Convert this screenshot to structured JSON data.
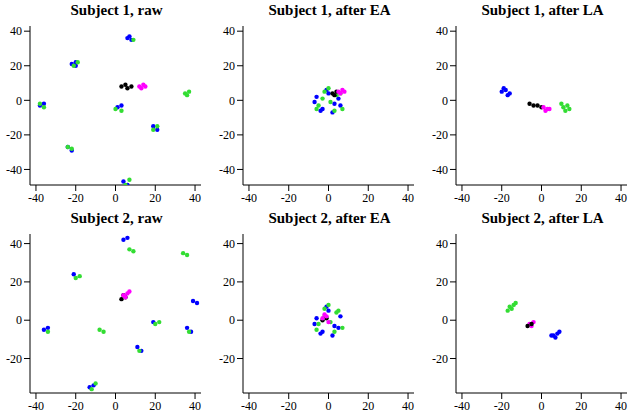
{
  "chart_data": [
    {
      "type": "scatter",
      "title": "Subject 1, raw",
      "xlim": [
        -43,
        43
      ],
      "ylim": [
        -49,
        43
      ],
      "xticks": [
        -40,
        -20,
        0,
        20,
        40
      ],
      "yticks": [
        -40,
        -20,
        0,
        20,
        40
      ],
      "series": [
        {
          "color": "#0000ff",
          "x": [
            -22,
            -20,
            6,
            8,
            7,
            1,
            3,
            19,
            21,
            -24,
            -22,
            4,
            6,
            -38,
            -36,
            -20
          ],
          "y": [
            21,
            22,
            36,
            35,
            37,
            -4,
            -3,
            -15,
            -17,
            -27,
            -29,
            -47,
            -49,
            -3,
            -2,
            20
          ]
        },
        {
          "color": "#33dd33",
          "x": [
            -21,
            -19,
            35,
            37,
            36,
            -36,
            -38,
            0,
            3,
            19,
            21,
            -22,
            -24,
            5,
            7,
            9
          ],
          "y": [
            20,
            22,
            4,
            5,
            3,
            -4,
            -2,
            -5,
            -6,
            -17,
            -15,
            -28,
            -27,
            -49,
            -46,
            35
          ]
        },
        {
          "color": "#000000",
          "x": [
            3,
            5,
            6,
            8
          ],
          "y": [
            8,
            9,
            7,
            8
          ]
        },
        {
          "color": "#ff00ff",
          "x": [
            12,
            14,
            15,
            13
          ],
          "y": [
            8,
            9,
            8,
            7
          ]
        }
      ]
    },
    {
      "type": "scatter",
      "title": "Subject 1, after EA",
      "xlim": [
        -43,
        43
      ],
      "ylim": [
        -49,
        43
      ],
      "xticks": [
        -40,
        -20,
        0,
        20,
        40
      ],
      "yticks": [
        -40,
        -20,
        0,
        20,
        40
      ],
      "series": [
        {
          "color": "#0000ff",
          "x": [
            -6,
            -3,
            0,
            3,
            5,
            -4,
            2,
            -1,
            6,
            -7
          ],
          "y": [
            2,
            -5,
            4,
            -2,
            1,
            -6,
            -7,
            6,
            -3,
            -1
          ]
        },
        {
          "color": "#33dd33",
          "x": [
            -5,
            -2,
            1,
            4,
            7,
            -3,
            3,
            0,
            6,
            -6
          ],
          "y": [
            -3,
            5,
            -1,
            3,
            -5,
            1,
            -6,
            7,
            4,
            -5
          ]
        },
        {
          "color": "#000000",
          "x": [
            2,
            4,
            3
          ],
          "y": [
            4,
            5,
            3
          ]
        },
        {
          "color": "#ff00ff",
          "x": [
            5,
            7,
            6,
            8
          ],
          "y": [
            5,
            6,
            4,
            5
          ]
        }
      ]
    },
    {
      "type": "scatter",
      "title": "Subject 1, after LA",
      "xlim": [
        -43,
        43
      ],
      "ylim": [
        -49,
        43
      ],
      "xticks": [
        -40,
        -20,
        0,
        20,
        40
      ],
      "yticks": [
        -40,
        -20,
        0,
        20,
        40
      ],
      "series": [
        {
          "color": "#0000ff",
          "x": [
            -20,
            -18,
            -16,
            -17,
            -19
          ],
          "y": [
            5,
            6,
            4,
            3,
            7
          ]
        },
        {
          "color": "#000000",
          "x": [
            -6,
            -4,
            -2,
            0
          ],
          "y": [
            -2,
            -3,
            -3,
            -4
          ]
        },
        {
          "color": "#ff00ff",
          "x": [
            1,
            3,
            4,
            2
          ],
          "y": [
            -4,
            -5,
            -5,
            -6
          ]
        },
        {
          "color": "#33dd33",
          "x": [
            11,
            13,
            12,
            14,
            10
          ],
          "y": [
            -4,
            -3,
            -6,
            -5,
            -2
          ]
        }
      ]
    },
    {
      "type": "scatter",
      "title": "Subject 2, raw",
      "xlim": [
        -43,
        43
      ],
      "ylim": [
        -38,
        45
      ],
      "xticks": [
        -40,
        -20,
        0,
        20,
        40
      ],
      "yticks": [
        -20,
        0,
        20,
        40
      ],
      "series": [
        {
          "color": "#0000ff",
          "x": [
            4,
            6,
            39,
            41,
            -36,
            -34,
            36,
            38,
            11,
            13,
            -13,
            -11,
            -21,
            19
          ],
          "y": [
            42,
            43,
            10,
            9,
            -5,
            -4,
            -4,
            -6,
            -14,
            -16,
            -35,
            -34,
            24,
            -1
          ]
        },
        {
          "color": "#33dd33",
          "x": [
            7,
            9,
            -20,
            -18,
            34,
            36,
            -34,
            -8,
            -6,
            20,
            22,
            37,
            12,
            -12,
            -10
          ],
          "y": [
            37,
            36,
            22,
            23,
            35,
            34,
            -6,
            -5,
            -6,
            -2,
            -1,
            -6,
            -16,
            -36,
            -33
          ]
        },
        {
          "color": "#000000",
          "x": [
            3,
            5,
            4
          ],
          "y": [
            11,
            12,
            13
          ]
        },
        {
          "color": "#ff00ff",
          "x": [
            4,
            6,
            7,
            5
          ],
          "y": [
            13,
            14,
            15,
            12
          ]
        }
      ]
    },
    {
      "type": "scatter",
      "title": "Subject 2, after EA",
      "xlim": [
        -43,
        43
      ],
      "ylim": [
        -38,
        45
      ],
      "xticks": [
        -40,
        -20,
        0,
        20,
        40
      ],
      "yticks": [
        -20,
        0,
        20,
        40
      ],
      "series": [
        {
          "color": "#0000ff",
          "x": [
            -6,
            -3,
            0,
            3,
            6,
            -4,
            2,
            -1,
            5,
            -7
          ],
          "y": [
            1,
            -6,
            5,
            -3,
            2,
            -7,
            -8,
            7,
            -4,
            -2
          ]
        },
        {
          "color": "#33dd33",
          "x": [
            -5,
            -2,
            1,
            4,
            7,
            -2,
            3,
            0,
            5,
            -6
          ],
          "y": [
            -2,
            6,
            -1,
            4,
            -4,
            2,
            -6,
            8,
            5,
            -5
          ]
        },
        {
          "color": "#000000",
          "x": [
            -3,
            -1
          ],
          "y": [
            0,
            1
          ]
        },
        {
          "color": "#ff00ff",
          "x": [
            -3,
            -1,
            0,
            -2
          ],
          "y": [
            1,
            2,
            -1,
            3
          ]
        }
      ]
    },
    {
      "type": "scatter",
      "title": "Subject 2, after LA",
      "xlim": [
        -43,
        43
      ],
      "ylim": [
        -38,
        45
      ],
      "xticks": [
        -40,
        -20,
        0,
        20,
        40
      ],
      "yticks": [
        -20,
        0,
        20,
        40
      ],
      "series": [
        {
          "color": "#33dd33",
          "x": [
            -16,
            -14,
            -15,
            -13,
            -17
          ],
          "y": [
            7,
            8,
            6,
            9,
            5
          ]
        },
        {
          "color": "#ff00ff",
          "x": [
            -6,
            -4,
            -5
          ],
          "y": [
            -2,
            -1,
            -3
          ]
        },
        {
          "color": "#000000",
          "x": [
            -7,
            -5
          ],
          "y": [
            -3,
            -2
          ]
        },
        {
          "color": "#0000ff",
          "x": [
            6,
            8,
            7,
            9,
            5
          ],
          "y": [
            -8,
            -7,
            -9,
            -6,
            -8
          ]
        }
      ]
    }
  ]
}
